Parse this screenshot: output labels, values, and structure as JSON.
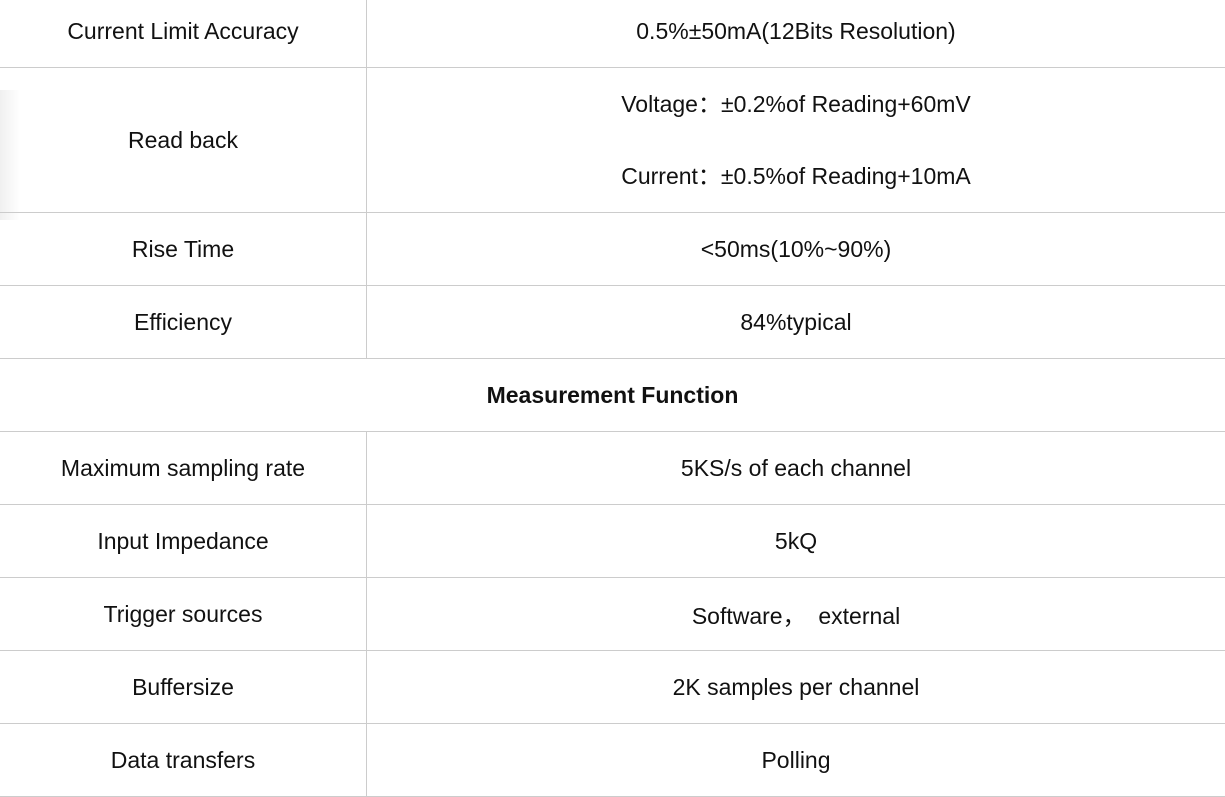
{
  "rows_top": [
    {
      "label": "Current Limit Accuracy",
      "values": [
        "0.5%±50mA(12Bits Resolution)"
      ]
    },
    {
      "label": "Read back",
      "values": [
        "Voltage：±0.2%of Reading+60mV",
        "Current：±0.5%of Reading+10mA"
      ]
    },
    {
      "label": "Rise Time",
      "values": [
        "<50ms(10%~90%)"
      ]
    },
    {
      "label": "Efficiency",
      "values": [
        "84%typical"
      ]
    }
  ],
  "section_title": "Measurement Function",
  "rows_bottom": [
    {
      "label": "Maximum sampling rate",
      "values": [
        "5KS/s of each channel"
      ]
    },
    {
      "label": "Input Impedance",
      "values": [
        "5kQ"
      ]
    },
    {
      "label": "Trigger sources",
      "values": [
        "Software，  external"
      ]
    },
    {
      "label": "Buffersize",
      "values": [
        "2K samples per channel"
      ]
    },
    {
      "label": "Data transfers",
      "values": [
        "Polling"
      ]
    }
  ]
}
